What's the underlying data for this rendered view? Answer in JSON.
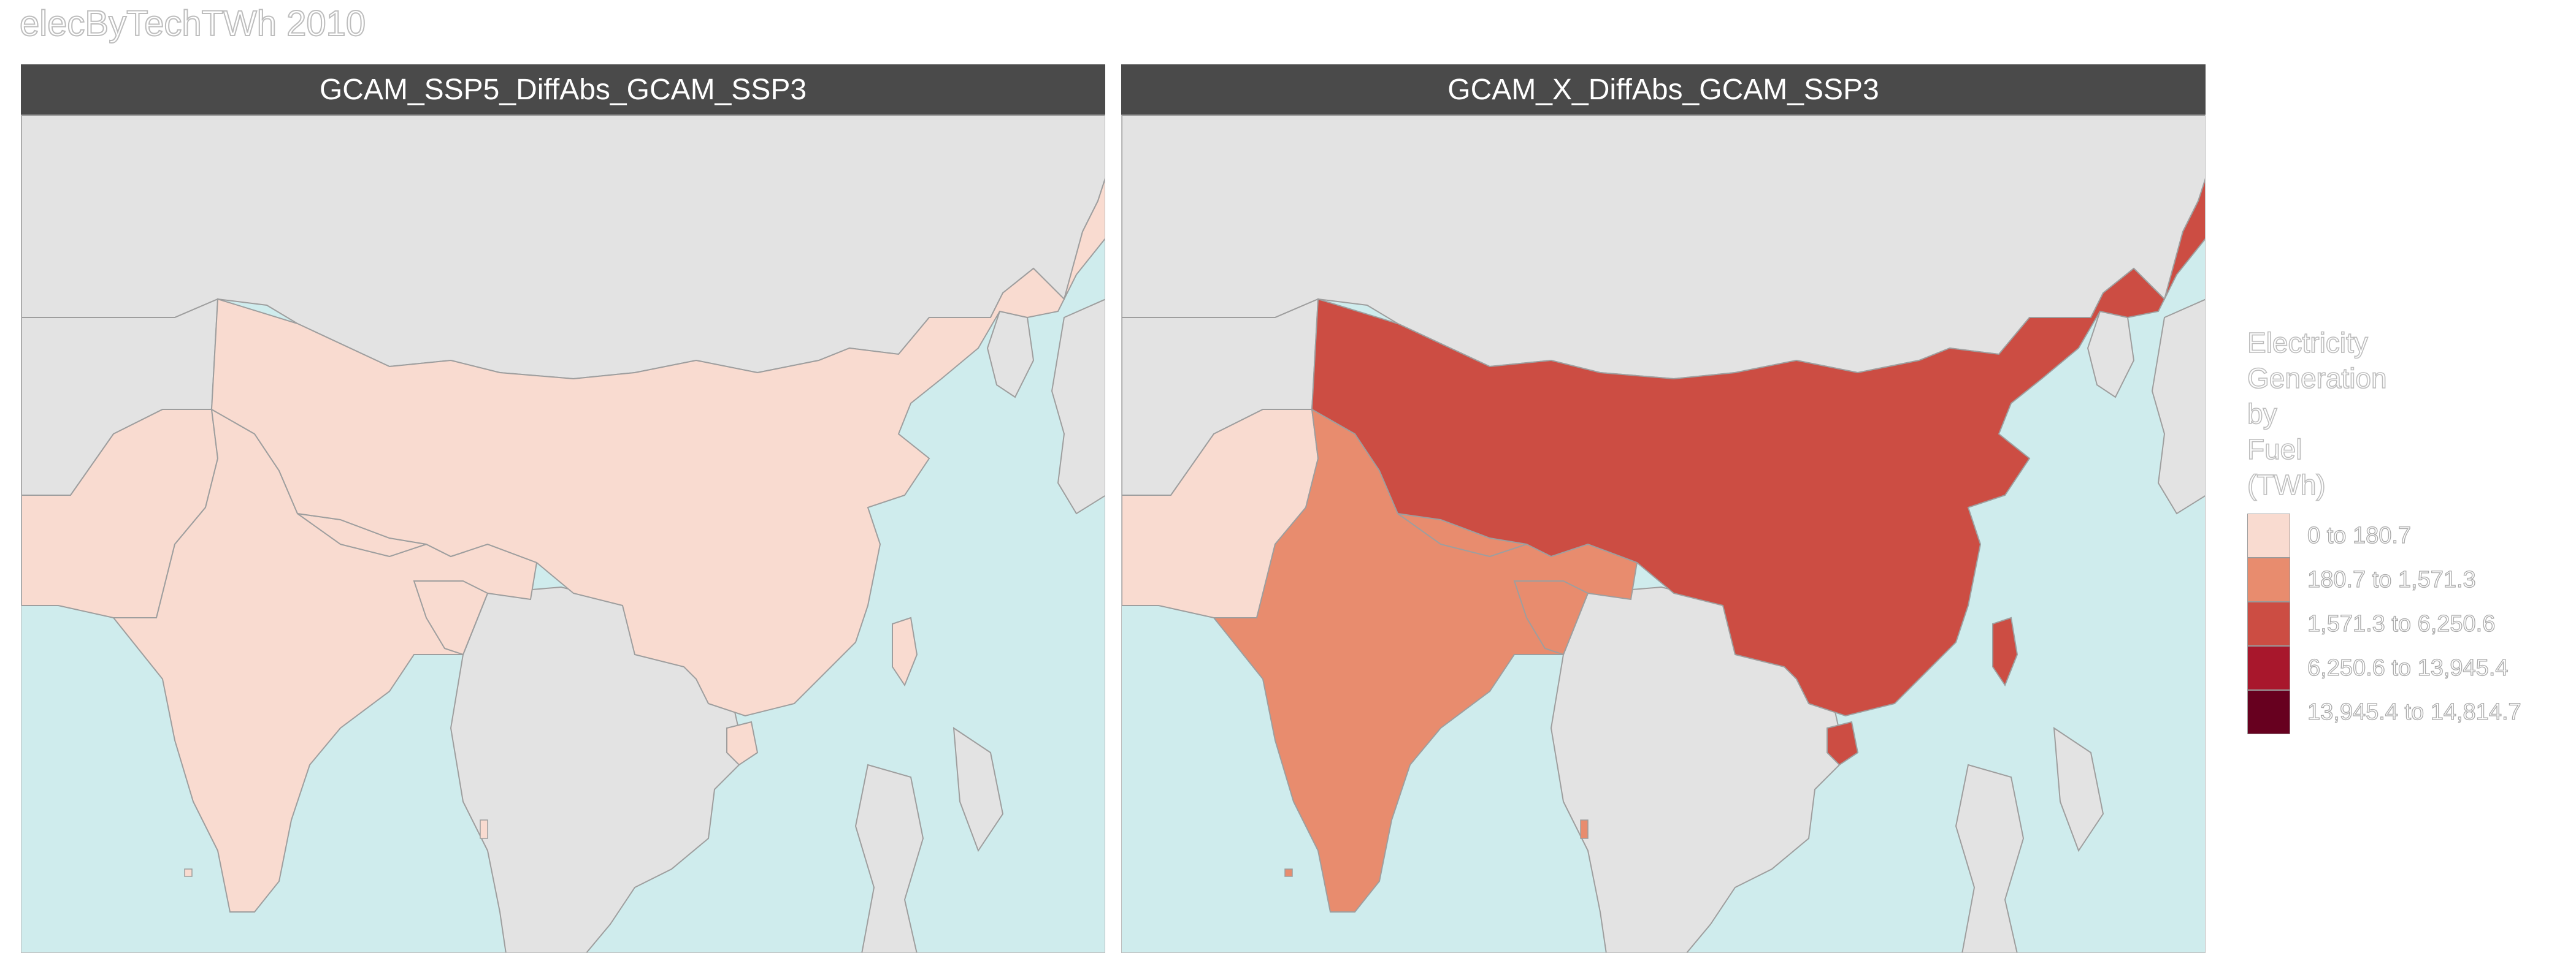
{
  "title": "elecByTechTWh 2010",
  "panels": [
    {
      "label": "GCAM_SSP5_DiffAbs_GCAM_SSP3",
      "regions": {
        "china": "0 to 180.7",
        "india": "0 to 180.7",
        "pakistan": "0 to 180.7",
        "nepal": "0 to 180.7",
        "bangladesh": "0 to 180.7",
        "taiwan": "0 to 180.7"
      }
    },
    {
      "label": "GCAM_X_DiffAbs_GCAM_SSP3",
      "regions": {
        "china": "1,571.3 to 6,250.6",
        "india": "180.7 to 1,571.3",
        "pakistan": "0 to 180.7",
        "nepal": "180.7 to 1,571.3",
        "bangladesh": "180.7 to 1,571.3",
        "taiwan": "1,571.3 to 6,250.6"
      }
    }
  ],
  "legend": {
    "title_lines": [
      "Electricity",
      "Generation",
      "by",
      "Fuel",
      "(TWh)"
    ],
    "items": [
      {
        "label": "0 to 180.7",
        "color": "#f9dbd0"
      },
      {
        "label": "180.7 to 1,571.3",
        "color": "#e88c6e"
      },
      {
        "label": "1,571.3 to 6,250.6",
        "color": "#cc4d43"
      },
      {
        "label": "6,250.6 to 13,945.4",
        "color": "#a8172c"
      },
      {
        "label": "13,945.4 to 14,814.7",
        "color": "#67001f"
      }
    ]
  },
  "colors": {
    "ocean": "#cfeced",
    "land": "#e3e3e3",
    "border": "#9e9e9e",
    "strip": "#4a4a4a"
  }
}
